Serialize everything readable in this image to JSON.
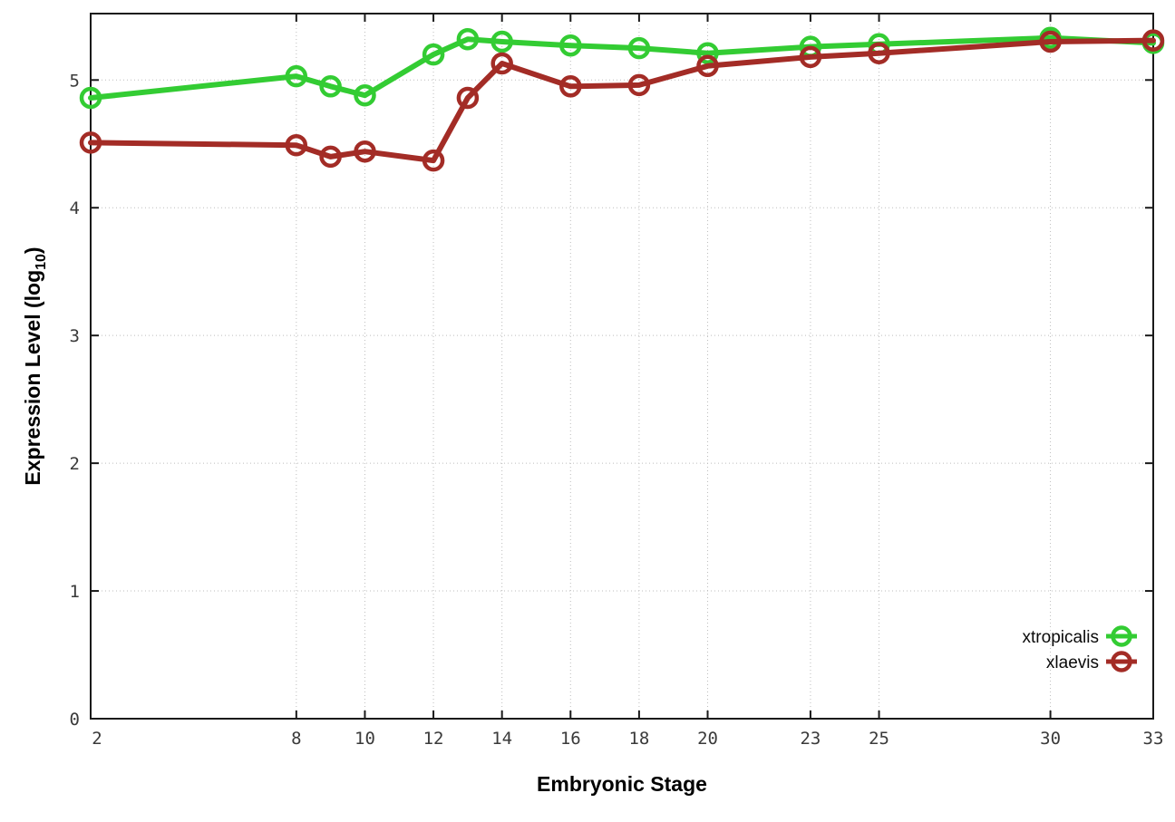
{
  "chart_data": {
    "type": "line",
    "title": "",
    "xlabel": "Embryonic Stage",
    "ylabel": "Expression Level (log10)",
    "ylabel_parts": {
      "main": "Expression Level (log",
      "sub": "10",
      "end": ")"
    },
    "x": [
      2,
      8,
      9,
      10,
      12,
      13,
      14,
      16,
      18,
      20,
      23,
      25,
      30,
      33
    ],
    "series": [
      {
        "name": "xtropicalis",
        "color": "#33cc33",
        "values": [
          4.86,
          5.03,
          4.95,
          4.88,
          5.2,
          5.32,
          5.3,
          5.27,
          5.25,
          5.21,
          5.26,
          5.28,
          5.33,
          5.29
        ]
      },
      {
        "name": "xlaevis",
        "color": "#a32c26",
        "values": [
          4.51,
          4.49,
          4.4,
          4.44,
          4.37,
          4.86,
          5.13,
          4.95,
          4.96,
          5.11,
          5.18,
          5.21,
          5.3,
          5.31
        ]
      }
    ],
    "x_tick_labels": [
      "2",
      "8",
      "10",
      "12",
      "14",
      "16",
      "18",
      "20",
      "23",
      "25",
      "30",
      "33"
    ],
    "x_tick_values": [
      2,
      8,
      10,
      12,
      14,
      16,
      18,
      20,
      23,
      25,
      30,
      33
    ],
    "y_tick_labels": [
      "0",
      "1",
      "2",
      "3",
      "4",
      "5"
    ],
    "y_tick_values": [
      0,
      1,
      2,
      3,
      4,
      5
    ],
    "xlim": [
      2,
      33
    ],
    "ylim": [
      0,
      5.52
    ],
    "grid": "dotted",
    "legend_position": "inside-bottom-right",
    "colors": {
      "plot_border": "#1a1a1a",
      "gridline": "#bdbdbd",
      "background": "#ffffff"
    }
  }
}
